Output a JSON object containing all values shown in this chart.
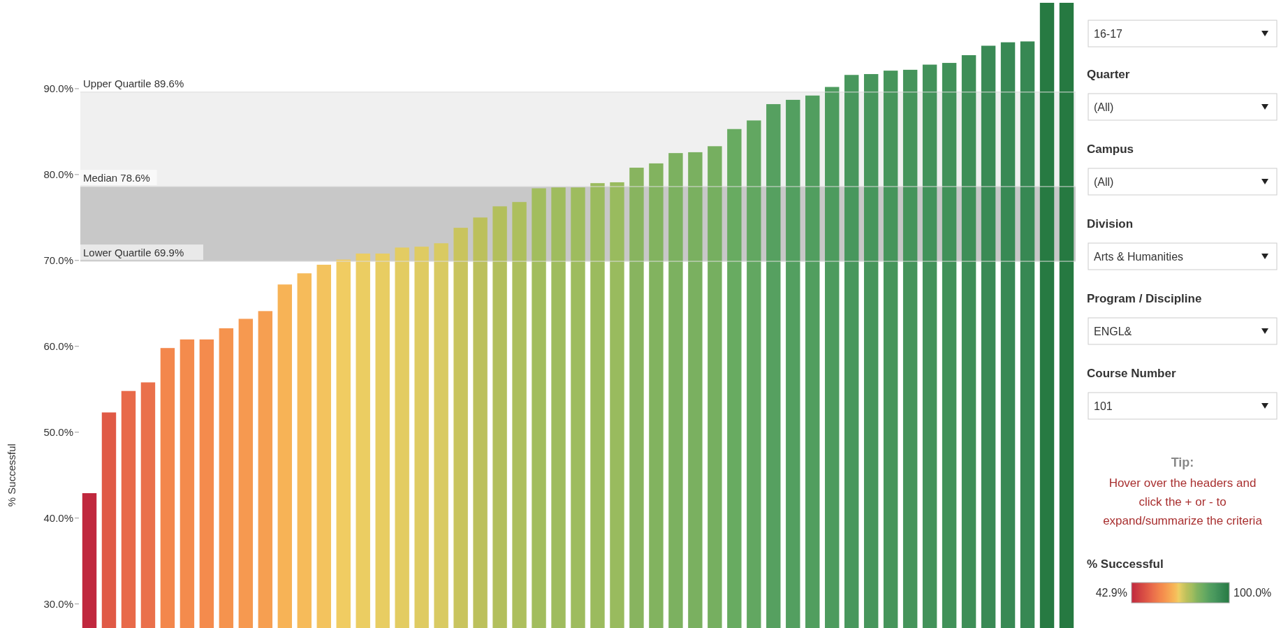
{
  "chart_data": {
    "type": "bar",
    "ylabel": "% Successful",
    "clabel": "% Successful",
    "categories": [
      null,
      null,
      null,
      null,
      null,
      null,
      null,
      null,
      null,
      null,
      null,
      null,
      null,
      null,
      null,
      null,
      null,
      null,
      null,
      null,
      null,
      null,
      null,
      null,
      null,
      null,
      null,
      null,
      null,
      null,
      null,
      null,
      null,
      null,
      null,
      null,
      null,
      null,
      null,
      null,
      null,
      null,
      null,
      null,
      null,
      null,
      null,
      null,
      null,
      null,
      null
    ],
    "values": [
      42.9,
      52.3,
      54.8,
      55.8,
      59.8,
      60.8,
      60.8,
      62.1,
      63.2,
      64.1,
      67.2,
      68.5,
      69.5,
      70.1,
      70.8,
      70.8,
      71.5,
      71.6,
      72.0,
      73.8,
      75.0,
      76.3,
      76.8,
      78.4,
      78.5,
      78.5,
      79.0,
      79.1,
      80.8,
      81.3,
      82.5,
      82.6,
      83.3,
      85.3,
      86.3,
      88.2,
      88.7,
      89.2,
      90.2,
      91.6,
      91.7,
      92.1,
      92.2,
      92.8,
      93.0,
      93.9,
      95.0,
      95.4,
      95.5,
      100,
      100
    ],
    "colors": [
      "#c0283e",
      "#e05a46",
      "#e86a4a",
      "#ea704b",
      "#f3874c",
      "#f48b4d",
      "#f48b4d",
      "#f5934e",
      "#f69950",
      "#f69f51",
      "#f7b356",
      "#f6bb5a",
      "#f3c35e",
      "#f0cc62",
      "#ebcd62",
      "#e8cd62",
      "#e3cc62",
      "#dfcb62",
      "#d9ca62",
      "#c9c45e",
      "#bcc05c",
      "#b3bf5c",
      "#adbf5d",
      "#a2bd5e",
      "#9fbc5e",
      "#9ebc5e",
      "#9bbb5e",
      "#99bb5e",
      "#88b45f",
      "#82b35f",
      "#7cb160",
      "#7ab060",
      "#76af60",
      "#68ab61",
      "#62a761",
      "#56a060",
      "#539f60",
      "#519e5f",
      "#4d9b5e",
      "#48975d",
      "#47965c",
      "#46955b",
      "#45945b",
      "#42925a",
      "#419159",
      "#3e8e57",
      "#3a8a55",
      "#388954",
      "#378853",
      "#277a42",
      "#267941"
    ],
    "ylim": [
      27.2,
      100
    ],
    "yticks": [
      {
        "value": 30,
        "label": "30.0%"
      },
      {
        "value": 40,
        "label": "40.0%"
      },
      {
        "value": 50,
        "label": "50.0%"
      },
      {
        "value": 60,
        "label": "60.0%"
      },
      {
        "value": 70,
        "label": "70.0%"
      },
      {
        "value": 80,
        "label": "80.0%"
      },
      {
        "value": 90,
        "label": "90.0%"
      }
    ],
    "tick_labels": "y",
    "grid": false,
    "bands": [
      {
        "axis": "y",
        "from": 78.6,
        "to": 89.6,
        "color": "#f0f0f0"
      },
      {
        "axis": "y",
        "from": 69.9,
        "to": 78.6,
        "color": "#c8c8c8"
      }
    ],
    "ref_lines": [
      {
        "axis": "y",
        "value": 89.6,
        "label": "Upper Quartile 89.6%"
      },
      {
        "axis": "y",
        "value": 78.6,
        "label": "Median 78.6%"
      },
      {
        "axis": "y",
        "value": 69.9,
        "label": "Lower Quartile 69.9%"
      }
    ],
    "clim": [
      42.9,
      100
    ],
    "cticks": [
      {
        "value": 42.9,
        "label": "42.9%"
      },
      {
        "value": 100,
        "label": "100.0%"
      }
    ],
    "annotations": [
      "16-17",
      "Quarter",
      "(All)",
      "Campus",
      "(All)",
      "Division",
      "Arts & Humanities",
      "Program / Discipline",
      "ENGL&",
      "Course Number",
      "101",
      "Tip:",
      "Hover over the headers and",
      "click the + or -  to",
      "expand/summarize the criteria"
    ]
  }
}
